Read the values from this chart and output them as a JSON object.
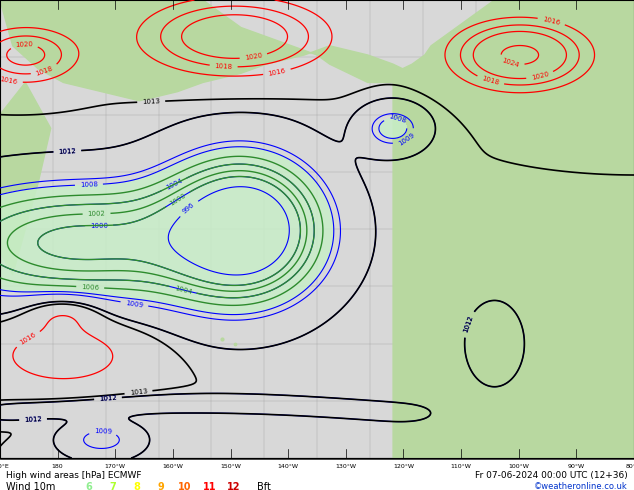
{
  "title_line1": "High wind areas [hPa] ECMWF",
  "title_line2": "Fr 07-06-2024 00:00 UTC (12+36)",
  "subtitle_left": "Wind 10m",
  "bft_nums": [
    "6",
    "7",
    "8",
    "9",
    "10",
    "11",
    "12"
  ],
  "bft_colors": [
    "#90ee90",
    "#adff2f",
    "#ffff00",
    "#ffa500",
    "#ff6600",
    "#ff0000",
    "#cc0000"
  ],
  "watermark": "©weatheronline.co.uk",
  "ocean_color": "#d8d8d8",
  "land_color": "#b8d8a0",
  "green_fill_color": "#c8eec8",
  "figure_width": 6.34,
  "figure_height": 4.9,
  "dpi": 100,
  "bottom_bar_height": 0.065
}
